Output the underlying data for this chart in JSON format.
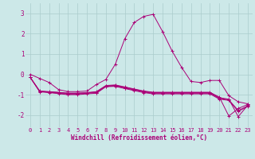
{
  "xlabel": "Windchill (Refroidissement éolien,°C)",
  "background_color": "#cce8e8",
  "grid_color": "#aacccc",
  "line_color": "#aa0077",
  "x_ticks": [
    0,
    1,
    2,
    3,
    4,
    5,
    6,
    7,
    8,
    9,
    10,
    11,
    12,
    13,
    14,
    15,
    16,
    17,
    18,
    19,
    20,
    21,
    22,
    23
  ],
  "y_ticks": [
    -2,
    -1,
    0,
    1,
    2,
    3
  ],
  "ylim": [
    -2.6,
    3.5
  ],
  "xlim": [
    -0.5,
    23.5
  ],
  "lines": [
    [
      0.0,
      -0.2,
      -0.4,
      -0.75,
      -0.85,
      -0.85,
      -0.82,
      -0.5,
      -0.25,
      0.5,
      1.75,
      2.55,
      2.85,
      2.95,
      2.1,
      1.15,
      0.35,
      -0.35,
      -0.4,
      -0.3,
      -0.3,
      -1.05,
      -1.35,
      -1.45
    ],
    [
      -0.15,
      -0.82,
      -0.85,
      -0.88,
      -0.92,
      -0.92,
      -0.9,
      -0.85,
      -0.55,
      -0.52,
      -0.62,
      -0.72,
      -0.82,
      -0.88,
      -0.88,
      -0.88,
      -0.88,
      -0.88,
      -0.88,
      -0.88,
      -1.12,
      -2.05,
      -1.68,
      -1.48
    ],
    [
      -0.15,
      -0.83,
      -0.87,
      -0.9,
      -0.94,
      -0.94,
      -0.91,
      -0.87,
      -0.57,
      -0.54,
      -0.64,
      -0.74,
      -0.84,
      -0.9,
      -0.9,
      -0.9,
      -0.9,
      -0.9,
      -0.9,
      -0.9,
      -1.15,
      -1.22,
      -2.08,
      -1.52
    ],
    [
      -0.15,
      -0.84,
      -0.88,
      -0.93,
      -0.97,
      -0.97,
      -0.93,
      -0.9,
      -0.59,
      -0.57,
      -0.67,
      -0.77,
      -0.87,
      -0.93,
      -0.93,
      -0.93,
      -0.93,
      -0.93,
      -0.93,
      -0.93,
      -1.18,
      -1.25,
      -1.78,
      -1.55
    ],
    [
      -0.15,
      -0.86,
      -0.9,
      -0.95,
      -1.0,
      -1.0,
      -0.96,
      -0.93,
      -0.61,
      -0.59,
      -0.7,
      -0.8,
      -0.9,
      -0.96,
      -0.96,
      -0.96,
      -0.96,
      -0.96,
      -0.96,
      -0.96,
      -1.22,
      -1.28,
      -1.82,
      -1.58
    ]
  ],
  "tick_fontsize": 5,
  "xlabel_fontsize": 5.5,
  "xlabel_fontweight": "bold"
}
